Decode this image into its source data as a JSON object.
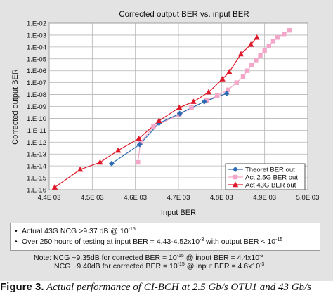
{
  "chart_data": {
    "type": "line",
    "title": "Corrected output BER vs. input BER",
    "xlabel": "Input BER",
    "ylabel": "Corrected output BER",
    "xlim": [
      0.0044,
      0.005
    ],
    "ylim_exponent": [
      -16,
      -2
    ],
    "y_scale": "log",
    "grid": true,
    "legend_position": "bottom-right",
    "x_tick_labels": [
      "4.4E 03",
      "4.5E 03",
      "4.6E 03",
      "4.7E 03",
      "4.8E 03",
      "4.9E 03",
      "5.0E 03"
    ],
    "x_tick_values": [
      0.0044,
      0.0045,
      0.0046,
      0.0047,
      0.0048,
      0.0049,
      0.005
    ],
    "y_tick_labels": [
      "1.E-02",
      "1.E-03",
      "1.E-04",
      "1.E-05",
      "1.E-06",
      "1.E-07",
      "1.E-08",
      "1.E-09",
      "1.E-10",
      "1.E-11",
      "1.E-12",
      "1.E-13",
      "1.E-14",
      "1.E-15",
      "1.E-16"
    ],
    "y_tick_exponents": [
      -2,
      -3,
      -4,
      -5,
      -6,
      -7,
      -8,
      -9,
      -10,
      -11,
      -12,
      -13,
      -14,
      -15,
      -16
    ],
    "series": [
      {
        "name": "Theoret BER out",
        "color": "#2e6db4",
        "marker": "diamond",
        "points": [
          {
            "x": 0.004545,
            "exp": -13.8
          },
          {
            "x": 0.00461,
            "exp": -12.2
          },
          {
            "x": 0.004655,
            "exp": -10.4
          },
          {
            "x": 0.004703,
            "exp": -9.6
          },
          {
            "x": 0.00476,
            "exp": -8.6
          },
          {
            "x": 0.004812,
            "exp": -7.9
          }
        ]
      },
      {
        "name": "Act 2.5G BER out",
        "color": "#f4a6c8",
        "marker": "square",
        "points": [
          {
            "x": 0.004606,
            "exp": -13.7
          },
          {
            "x": 0.004612,
            "exp": -12.0
          },
          {
            "x": 0.004642,
            "exp": -10.7
          },
          {
            "x": 0.004702,
            "exp": -9.7
          },
          {
            "x": 0.00473,
            "exp": -9.1
          },
          {
            "x": 0.004765,
            "exp": -8.5
          },
          {
            "x": 0.00479,
            "exp": -8.1
          },
          {
            "x": 0.004815,
            "exp": -7.6
          },
          {
            "x": 0.004835,
            "exp": -7.0
          },
          {
            "x": 0.00485,
            "exp": -6.5
          },
          {
            "x": 0.00486,
            "exp": -6.0
          },
          {
            "x": 0.00487,
            "exp": -5.5
          },
          {
            "x": 0.00488,
            "exp": -5.1
          },
          {
            "x": 0.00489,
            "exp": -4.7
          },
          {
            "x": 0.0049,
            "exp": -4.3
          },
          {
            "x": 0.00491,
            "exp": -3.9
          },
          {
            "x": 0.00492,
            "exp": -3.5
          },
          {
            "x": 0.00493,
            "exp": -3.2
          },
          {
            "x": 0.004945,
            "exp": -2.9
          },
          {
            "x": 0.004958,
            "exp": -2.6
          }
        ]
      },
      {
        "name": "Act 43G BER out",
        "color": "#e0192a",
        "marker": "triangle",
        "points": [
          {
            "x": 0.004413,
            "exp": -15.8
          },
          {
            "x": 0.004472,
            "exp": -14.3
          },
          {
            "x": 0.004518,
            "exp": -13.7
          },
          {
            "x": 0.00456,
            "exp": -12.7
          },
          {
            "x": 0.004608,
            "exp": -11.7
          },
          {
            "x": 0.004655,
            "exp": -10.2
          },
          {
            "x": 0.004702,
            "exp": -9.1
          },
          {
            "x": 0.004735,
            "exp": -8.6
          },
          {
            "x": 0.00477,
            "exp": -7.8
          },
          {
            "x": 0.004802,
            "exp": -6.7
          },
          {
            "x": 0.004818,
            "exp": -6.1
          },
          {
            "x": 0.004845,
            "exp": -4.6
          },
          {
            "x": 0.004868,
            "exp": -3.8
          },
          {
            "x": 0.004882,
            "exp": -3.2
          }
        ]
      }
    ]
  },
  "notes": {
    "bullets": [
      {
        "text": "Actual 43G NCG >9.37 dB @ 10",
        "sup": "-15"
      },
      {
        "text": "Over 250 hours of testing at input BER = 4.43-4.52x10",
        "sup": "-3",
        "text2": " with output BER < 10",
        "sup2": "-15"
      }
    ],
    "footnote": [
      {
        "prefix": "Note:",
        "a": "NCG ~9.35dB for corrected BER = 10",
        "a_sup": "-15",
        "b": " @ input BER = 4.4x10",
        "b_sup": "-3"
      },
      {
        "prefix": "",
        "a": "NCG ~9.40dB for corrected BER = 10",
        "a_sup": "-15",
        "b": " @ input BER = 4.6x10",
        "b_sup": "-3"
      }
    ]
  },
  "caption": {
    "label": "Figure 3.",
    "text": " Actual performance of CI-BCH at 2.5 Gb/s OTU1 and 43 Gb/s"
  }
}
